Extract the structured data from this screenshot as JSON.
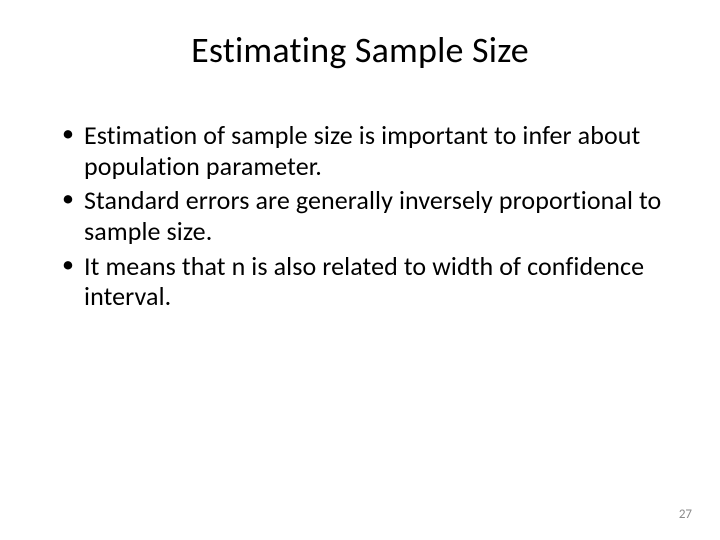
{
  "slide": {
    "title": "Estimating Sample Size",
    "bullets": [
      "Estimation of sample size is important to infer about population parameter.",
      "Standard errors are generally inversely proportional to sample size.",
      "It means that n is also related to width of confidence interval."
    ],
    "page_number": "27",
    "title_fontsize": 36,
    "body_fontsize": 26,
    "page_number_fontsize": 13,
    "text_color": "#000000",
    "page_number_color": "#8a8a8a",
    "background_color": "#ffffff"
  }
}
